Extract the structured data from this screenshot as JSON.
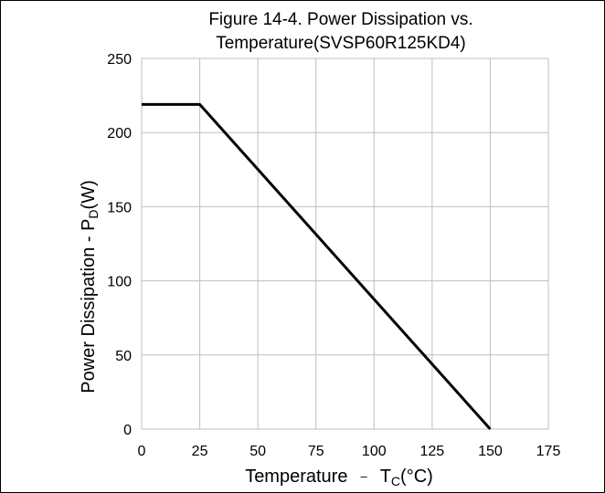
{
  "chart_data": {
    "type": "line",
    "title_line1": "Figure 14-4. Power Dissipation vs.",
    "title_line2": "Temperature(SVSP60R125KD4)",
    "xlabel_main": "Temperature",
    "xlabel_sep": "–",
    "xlabel_sym": "T",
    "xlabel_sub": "C",
    "xlabel_unit": "(°C)",
    "ylabel_main": "Power Dissipation - P",
    "ylabel_sub": "D",
    "ylabel_unit": "(W)",
    "xlim": [
      0,
      175
    ],
    "ylim": [
      0,
      250
    ],
    "xticks": [
      0,
      25,
      50,
      75,
      100,
      125,
      150,
      175
    ],
    "yticks": [
      0,
      50,
      100,
      150,
      200,
      250
    ],
    "grid": true,
    "series": [
      {
        "x": [
          0,
          25,
          150
        ],
        "y": [
          219,
          219,
          0
        ],
        "color": "#000000"
      }
    ]
  }
}
